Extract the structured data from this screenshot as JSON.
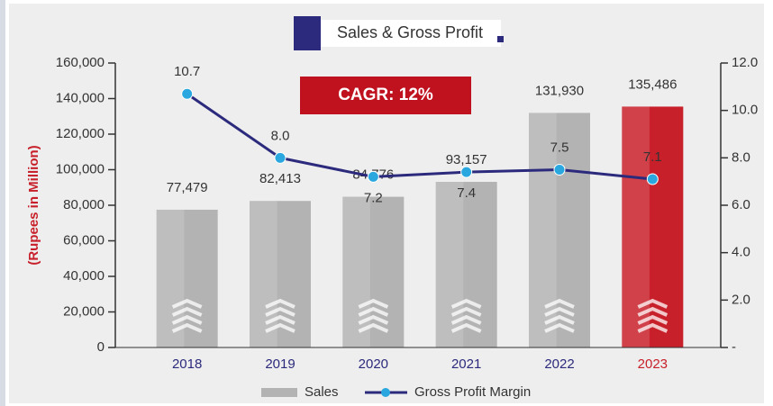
{
  "chart_data": {
    "type": "bar+line",
    "title": "Sales & Gross Profit",
    "annotation": "CAGR: 12%",
    "y_label": "(Rupees in Million)",
    "categories": [
      "2018",
      "2019",
      "2020",
      "2021",
      "2022",
      "2023"
    ],
    "series": [
      {
        "name": "Sales",
        "type": "bar",
        "color": "#b3b3b3",
        "colors": [
          "#b3b3b3",
          "#b3b3b3",
          "#b3b3b3",
          "#b3b3b3",
          "#b3b3b3",
          "#c8202a"
        ],
        "values": [
          77479,
          82413,
          84776,
          93157,
          131930,
          135486
        ],
        "value_labels": [
          "77,479",
          "82,413",
          "84,776",
          "93,157",
          "131,930",
          "135,486"
        ]
      },
      {
        "name": "Gross Profit Margin",
        "type": "line",
        "axis": "y2",
        "color": "#2b2a7c",
        "marker_color": "#2aa7df",
        "values": [
          10.7,
          8.0,
          7.2,
          7.4,
          7.5,
          7.1
        ],
        "value_labels": [
          "10.7",
          "8.0",
          "7.2",
          "7.4",
          "7.5",
          "7.1"
        ]
      }
    ],
    "ylim": [
      0,
      160000
    ],
    "yticks": [
      {
        "value": 0,
        "label": "0"
      },
      {
        "value": 20000,
        "label": "20,000"
      },
      {
        "value": 40000,
        "label": "40,000"
      },
      {
        "value": 60000,
        "label": "60,000"
      },
      {
        "value": 80000,
        "label": "80,000"
      },
      {
        "value": 100000,
        "label": "100,000"
      },
      {
        "value": 120000,
        "label": "120,000"
      },
      {
        "value": 140000,
        "label": "140,000"
      },
      {
        "value": 160000,
        "label": "160,000"
      }
    ],
    "y2lim": [
      0,
      12
    ],
    "y2ticks": [
      {
        "value": 0,
        "label": "-"
      },
      {
        "value": 2,
        "label": "2.0"
      },
      {
        "value": 4,
        "label": "4.0"
      },
      {
        "value": 6,
        "label": "6.0"
      },
      {
        "value": 8,
        "label": "8.0"
      },
      {
        "value": 10,
        "label": "10.0"
      },
      {
        "value": 12,
        "label": "12.0"
      }
    ],
    "category_colors": [
      "#2b2a7c",
      "#2b2a7c",
      "#2b2a7c",
      "#2b2a7c",
      "#2b2a7c",
      "#c8202a"
    ],
    "legend": "bottom"
  }
}
